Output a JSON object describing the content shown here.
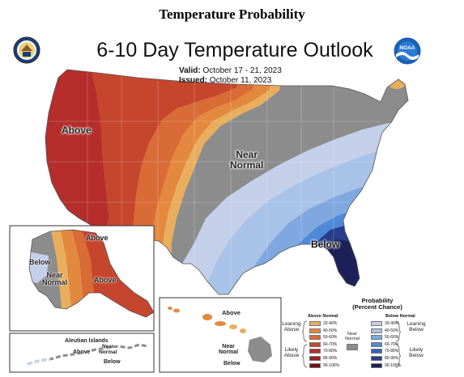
{
  "page_heading": "Temperature Probability",
  "map": {
    "title": "6-10 Day Temperature Outlook",
    "valid_label": "Valid:",
    "valid_dates": "October 17 - 21, 2023",
    "issued_label": "Issued:",
    "issued_date": "October 11, 2023",
    "region_labels": {
      "above_west": "Above",
      "near_normal_line1": "Near",
      "near_normal_line2": "Normal",
      "below_southeast": "Below"
    },
    "alaska_labels": {
      "above_north": "Above",
      "above_south": "Above",
      "below": "Below",
      "near_normal_line1": "Near",
      "near_normal_line2": "Normal"
    },
    "aleutian_labels": {
      "title": "Aleutian Islands",
      "above": "Above",
      "near_normal_line1": "Near",
      "near_normal_line2": "Normal",
      "below": "Below"
    },
    "hawaii_labels": {
      "above": "Above",
      "near_normal_line1": "Near",
      "near_normal_line2": "Normal",
      "below": "Below"
    }
  },
  "logos": {
    "left": "commerce-seal-icon",
    "right": "noaa-logo-icon",
    "noaa_text": "NOAA"
  },
  "legend": {
    "title_line1": "Probability",
    "title_line2": "(Percent Chance)",
    "above_header": "Above Normal",
    "below_header": "Below Normal",
    "near_normal_line1": "Near",
    "near_normal_line2": "Normal",
    "leaning_above_line1": "Leaning",
    "leaning_above_line2": "Above",
    "likely_above_line1": "Likely",
    "likely_above_line2": "Above",
    "leaning_below_line1": "Leaning",
    "leaning_below_line2": "Below",
    "likely_below_line1": "Likely",
    "likely_below_line2": "Below",
    "ranges": [
      "33-40%",
      "40-50%",
      "50-60%",
      "60-70%",
      "70-80%",
      "80-90%",
      "90-100%"
    ],
    "above_colors": [
      "#e8ae5e",
      "#e3893f",
      "#d96b36",
      "#c6462d",
      "#b52e2b",
      "#9b1c1f",
      "#6e1017"
    ],
    "below_colors": [
      "#c4cfea",
      "#a9c2e8",
      "#7fa8e0",
      "#4f8ad8",
      "#2f61b8",
      "#283e8b",
      "#1c2159"
    ],
    "near_color": "#8c8c8c"
  }
}
